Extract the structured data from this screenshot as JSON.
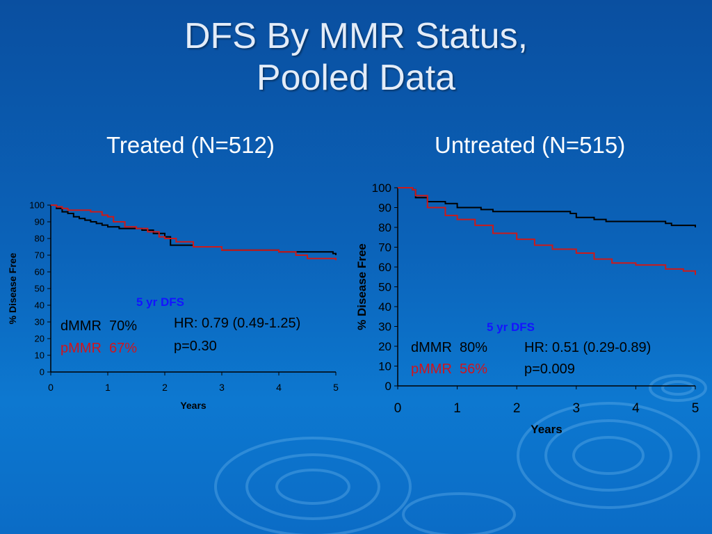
{
  "title": {
    "line1": "DFS By MMR Status,",
    "line2": "Pooled Data"
  },
  "colors": {
    "dmmr": "#000000",
    "pmmr": "#cc1a1a",
    "annotation_blue": "#1414ff",
    "background": "#0b62b8"
  },
  "chart_data": [
    {
      "type": "line",
      "title": "Treated (N=512)",
      "xlabel": "Years",
      "ylabel": "% Disease Free",
      "xlim": [
        0,
        5
      ],
      "ylim": [
        0,
        100
      ],
      "x_ticks": [
        "0",
        "1",
        "2",
        "3",
        "4",
        "5"
      ],
      "y_ticks": [
        "0",
        "10",
        "20",
        "30",
        "40",
        "50",
        "60",
        "70",
        "80",
        "90",
        "100"
      ],
      "legend_heading": "5 yr DFS",
      "series": [
        {
          "name": "dMMR",
          "label_value": "70%",
          "color": "#000000",
          "x": [
            0,
            0.1,
            0.2,
            0.3,
            0.4,
            0.5,
            0.6,
            0.7,
            0.8,
            0.9,
            1.0,
            1.2,
            1.4,
            1.6,
            1.8,
            2.0,
            2.1,
            2.5,
            3.0,
            3.5,
            4.0,
            4.5,
            4.95,
            5.0
          ],
          "y": [
            100,
            98,
            96,
            95,
            93,
            92,
            91,
            90,
            89,
            88,
            87,
            86,
            86,
            85,
            83,
            81,
            76,
            75,
            73,
            73,
            72,
            72,
            71,
            70
          ]
        },
        {
          "name": "pMMR",
          "label_value": "67%",
          "color": "#cc1a1a",
          "x": [
            0,
            0.1,
            0.2,
            0.3,
            0.5,
            0.7,
            0.9,
            1.0,
            1.1,
            1.3,
            1.5,
            1.7,
            1.9,
            2.0,
            2.2,
            2.5,
            3.0,
            3.5,
            4.0,
            4.3,
            4.5,
            5.0
          ],
          "y": [
            100,
            99,
            98,
            97,
            97,
            96,
            94,
            93,
            90,
            87,
            86,
            84,
            81,
            80,
            78,
            75,
            73,
            73,
            72,
            70,
            68,
            67
          ]
        }
      ],
      "stats": {
        "hr": "HR: 0.79 (0.49-1.25)",
        "p": "p=0.30"
      }
    },
    {
      "type": "line",
      "title": "Untreated (N=515)",
      "xlabel": "Years",
      "ylabel": "% Disease Free",
      "xlim": [
        0,
        5
      ],
      "ylim": [
        0,
        100
      ],
      "x_ticks": [
        "0",
        "1",
        "2",
        "3",
        "4",
        "5"
      ],
      "y_ticks": [
        "0",
        "10",
        "20",
        "30",
        "40",
        "50",
        "60",
        "70",
        "80",
        "90",
        "100"
      ],
      "legend_heading": "5 yr DFS",
      "series": [
        {
          "name": "dMMR",
          "label_value": "80%",
          "color": "#000000",
          "x": [
            0,
            0.25,
            0.3,
            0.5,
            0.8,
            1.0,
            1.4,
            1.6,
            2.0,
            2.6,
            2.9,
            3.0,
            3.3,
            3.5,
            4.0,
            4.5,
            4.6,
            5.0
          ],
          "y": [
            100,
            99,
            95,
            93,
            92,
            90,
            89,
            88,
            88,
            88,
            87,
            85,
            84,
            83,
            83,
            82,
            81,
            80
          ]
        },
        {
          "name": "pMMR",
          "label_value": "56%",
          "color": "#cc1a1a",
          "x": [
            0,
            0.25,
            0.3,
            0.5,
            0.8,
            1.0,
            1.3,
            1.6,
            2.0,
            2.3,
            2.6,
            3.0,
            3.3,
            3.6,
            4.0,
            4.5,
            4.8,
            5.0
          ],
          "y": [
            100,
            99,
            96,
            90,
            86,
            84,
            81,
            77,
            74,
            71,
            69,
            67,
            64,
            62,
            61,
            59,
            58,
            56
          ]
        }
      ],
      "stats": {
        "hr": "HR: 0.51 (0.29-0.89)",
        "p": "p=0.009"
      }
    }
  ]
}
